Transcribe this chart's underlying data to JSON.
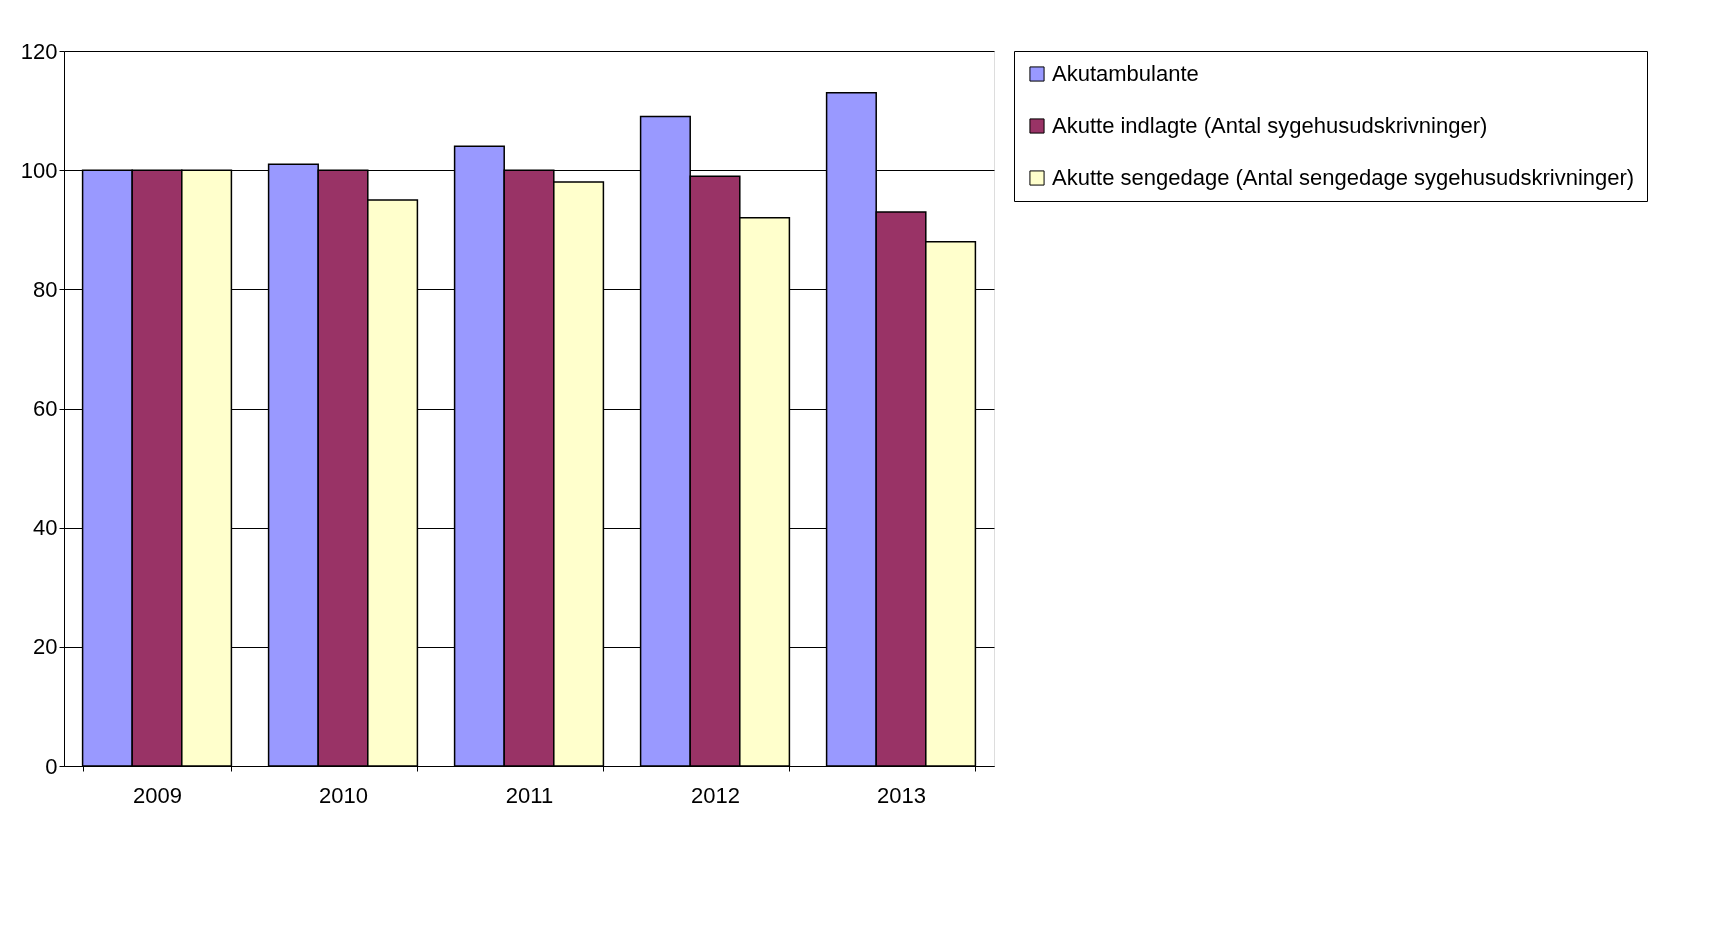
{
  "chart_data": {
    "type": "bar",
    "categories": [
      "2009",
      "2010",
      "2011",
      "2012",
      "2013"
    ],
    "series": [
      {
        "name": "Akutambulante",
        "color": "#9999ff",
        "values": [
          100,
          101,
          104,
          109,
          113
        ]
      },
      {
        "name": "Akutte indlagte (Antal sygehusudskrivninger)",
        "color": "#993366",
        "values": [
          100,
          100,
          100,
          99,
          93
        ]
      },
      {
        "name": "Akutte sengedage (Antal sengedage sygehusudskrivninger)",
        "color": "#ffffcc",
        "values": [
          100,
          95,
          98,
          92,
          88
        ]
      }
    ],
    "ylim": [
      0,
      120
    ],
    "yticks": [
      0,
      20,
      40,
      60,
      80,
      100,
      120
    ],
    "grid": "y",
    "legend": "right"
  }
}
